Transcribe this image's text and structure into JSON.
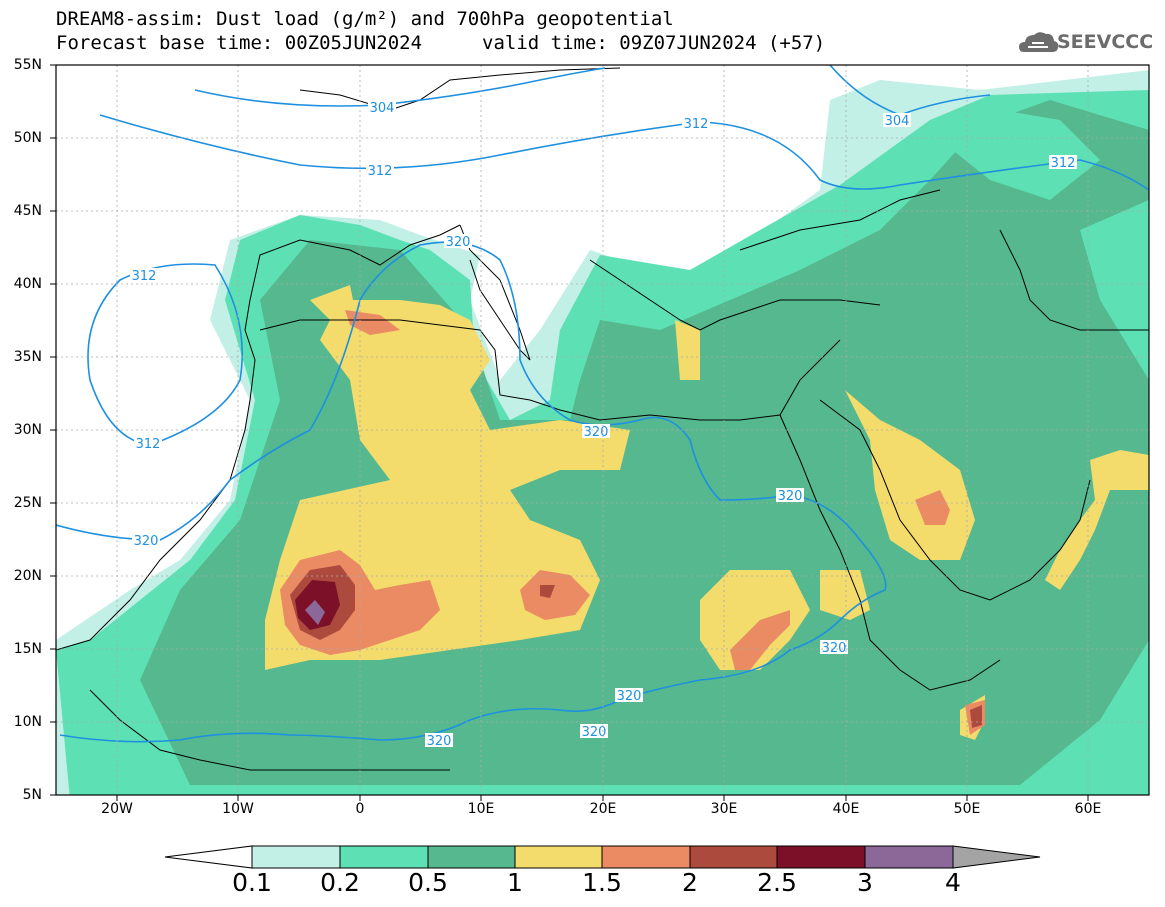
{
  "title": {
    "line1": "DREAM8-assim: Dust load (g/m²) and 700hPa geopotential",
    "line2": "Forecast base time: 00Z05JUN2024",
    "valid": "valid time: 09Z07JUN2024 (+57)"
  },
  "logo": {
    "text": "SEEVCCC",
    "icon": "cloud-icon"
  },
  "map": {
    "extent": {
      "lon": [
        -25,
        65
      ],
      "lat": [
        5,
        55
      ]
    },
    "lat_ticks": [
      "55N",
      "50N",
      "45N",
      "40N",
      "35N",
      "30N",
      "25N",
      "20N",
      "15N",
      "10N",
      "5N"
    ],
    "lon_ticks": [
      "20W",
      "10W",
      "0",
      "10E",
      "20E",
      "30E",
      "40E",
      "50E",
      "60E"
    ],
    "contour_labels": [
      "304",
      "304",
      "312",
      "312",
      "312",
      "312",
      "312",
      "320",
      "320",
      "320",
      "320",
      "320",
      "320",
      "320",
      "320"
    ],
    "contour_color": "#1e90e0"
  },
  "colorbar": {
    "labels": [
      "0.1",
      "0.2",
      "0.5",
      "1",
      "1.5",
      "2",
      "2.5",
      "3",
      "4"
    ],
    "colors": [
      "#ffffff",
      "#c2f0e6",
      "#5ee0b5",
      "#55b88f",
      "#f3dc6c",
      "#ea8b63",
      "#ac4b3d",
      "#7d1029",
      "#8c6898",
      "#a4a4a4"
    ]
  }
}
